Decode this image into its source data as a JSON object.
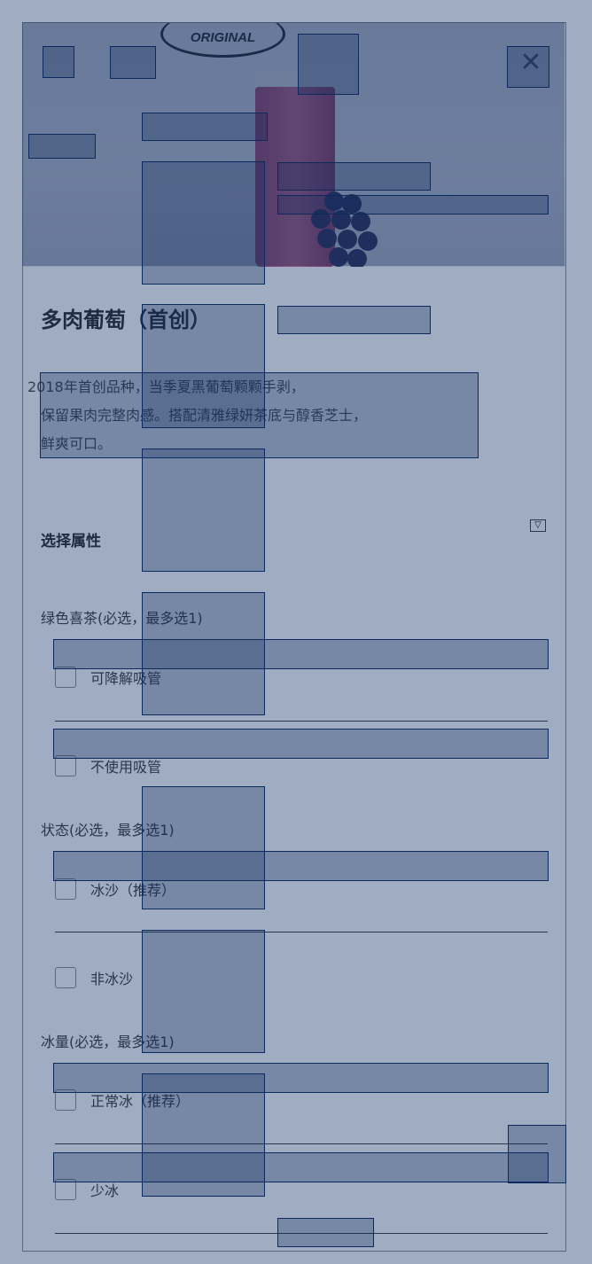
{
  "hero": {
    "logo_text": "HEYTEA ORIGINAL",
    "close_icon": "close-icon"
  },
  "product": {
    "title": "多肉葡萄（首创）",
    "description": [
      "2018年首创品种，当季夏黑葡萄颗颗手剥，",
      "保留果肉完整肉感。搭配清雅绿妍茶底与醇香芝士，",
      "鲜爽可口。"
    ]
  },
  "attributes": {
    "section_title": "选择属性",
    "toggle_icon": "collapse-icon",
    "groups": [
      {
        "label": "绿色喜茶(必选，最多选1)",
        "options": [
          "可降解吸管",
          "不使用吸管"
        ]
      },
      {
        "label": "状态(必选，最多选1)",
        "options": [
          "冰沙（推荐）",
          "非冰沙"
        ]
      },
      {
        "label": "冰量(必选，最多选1)",
        "options": [
          "正常冰（推荐）",
          "少冰"
        ]
      }
    ]
  },
  "colors": {
    "overlay": "#1c3a6e",
    "box": "#0d2a5c"
  }
}
